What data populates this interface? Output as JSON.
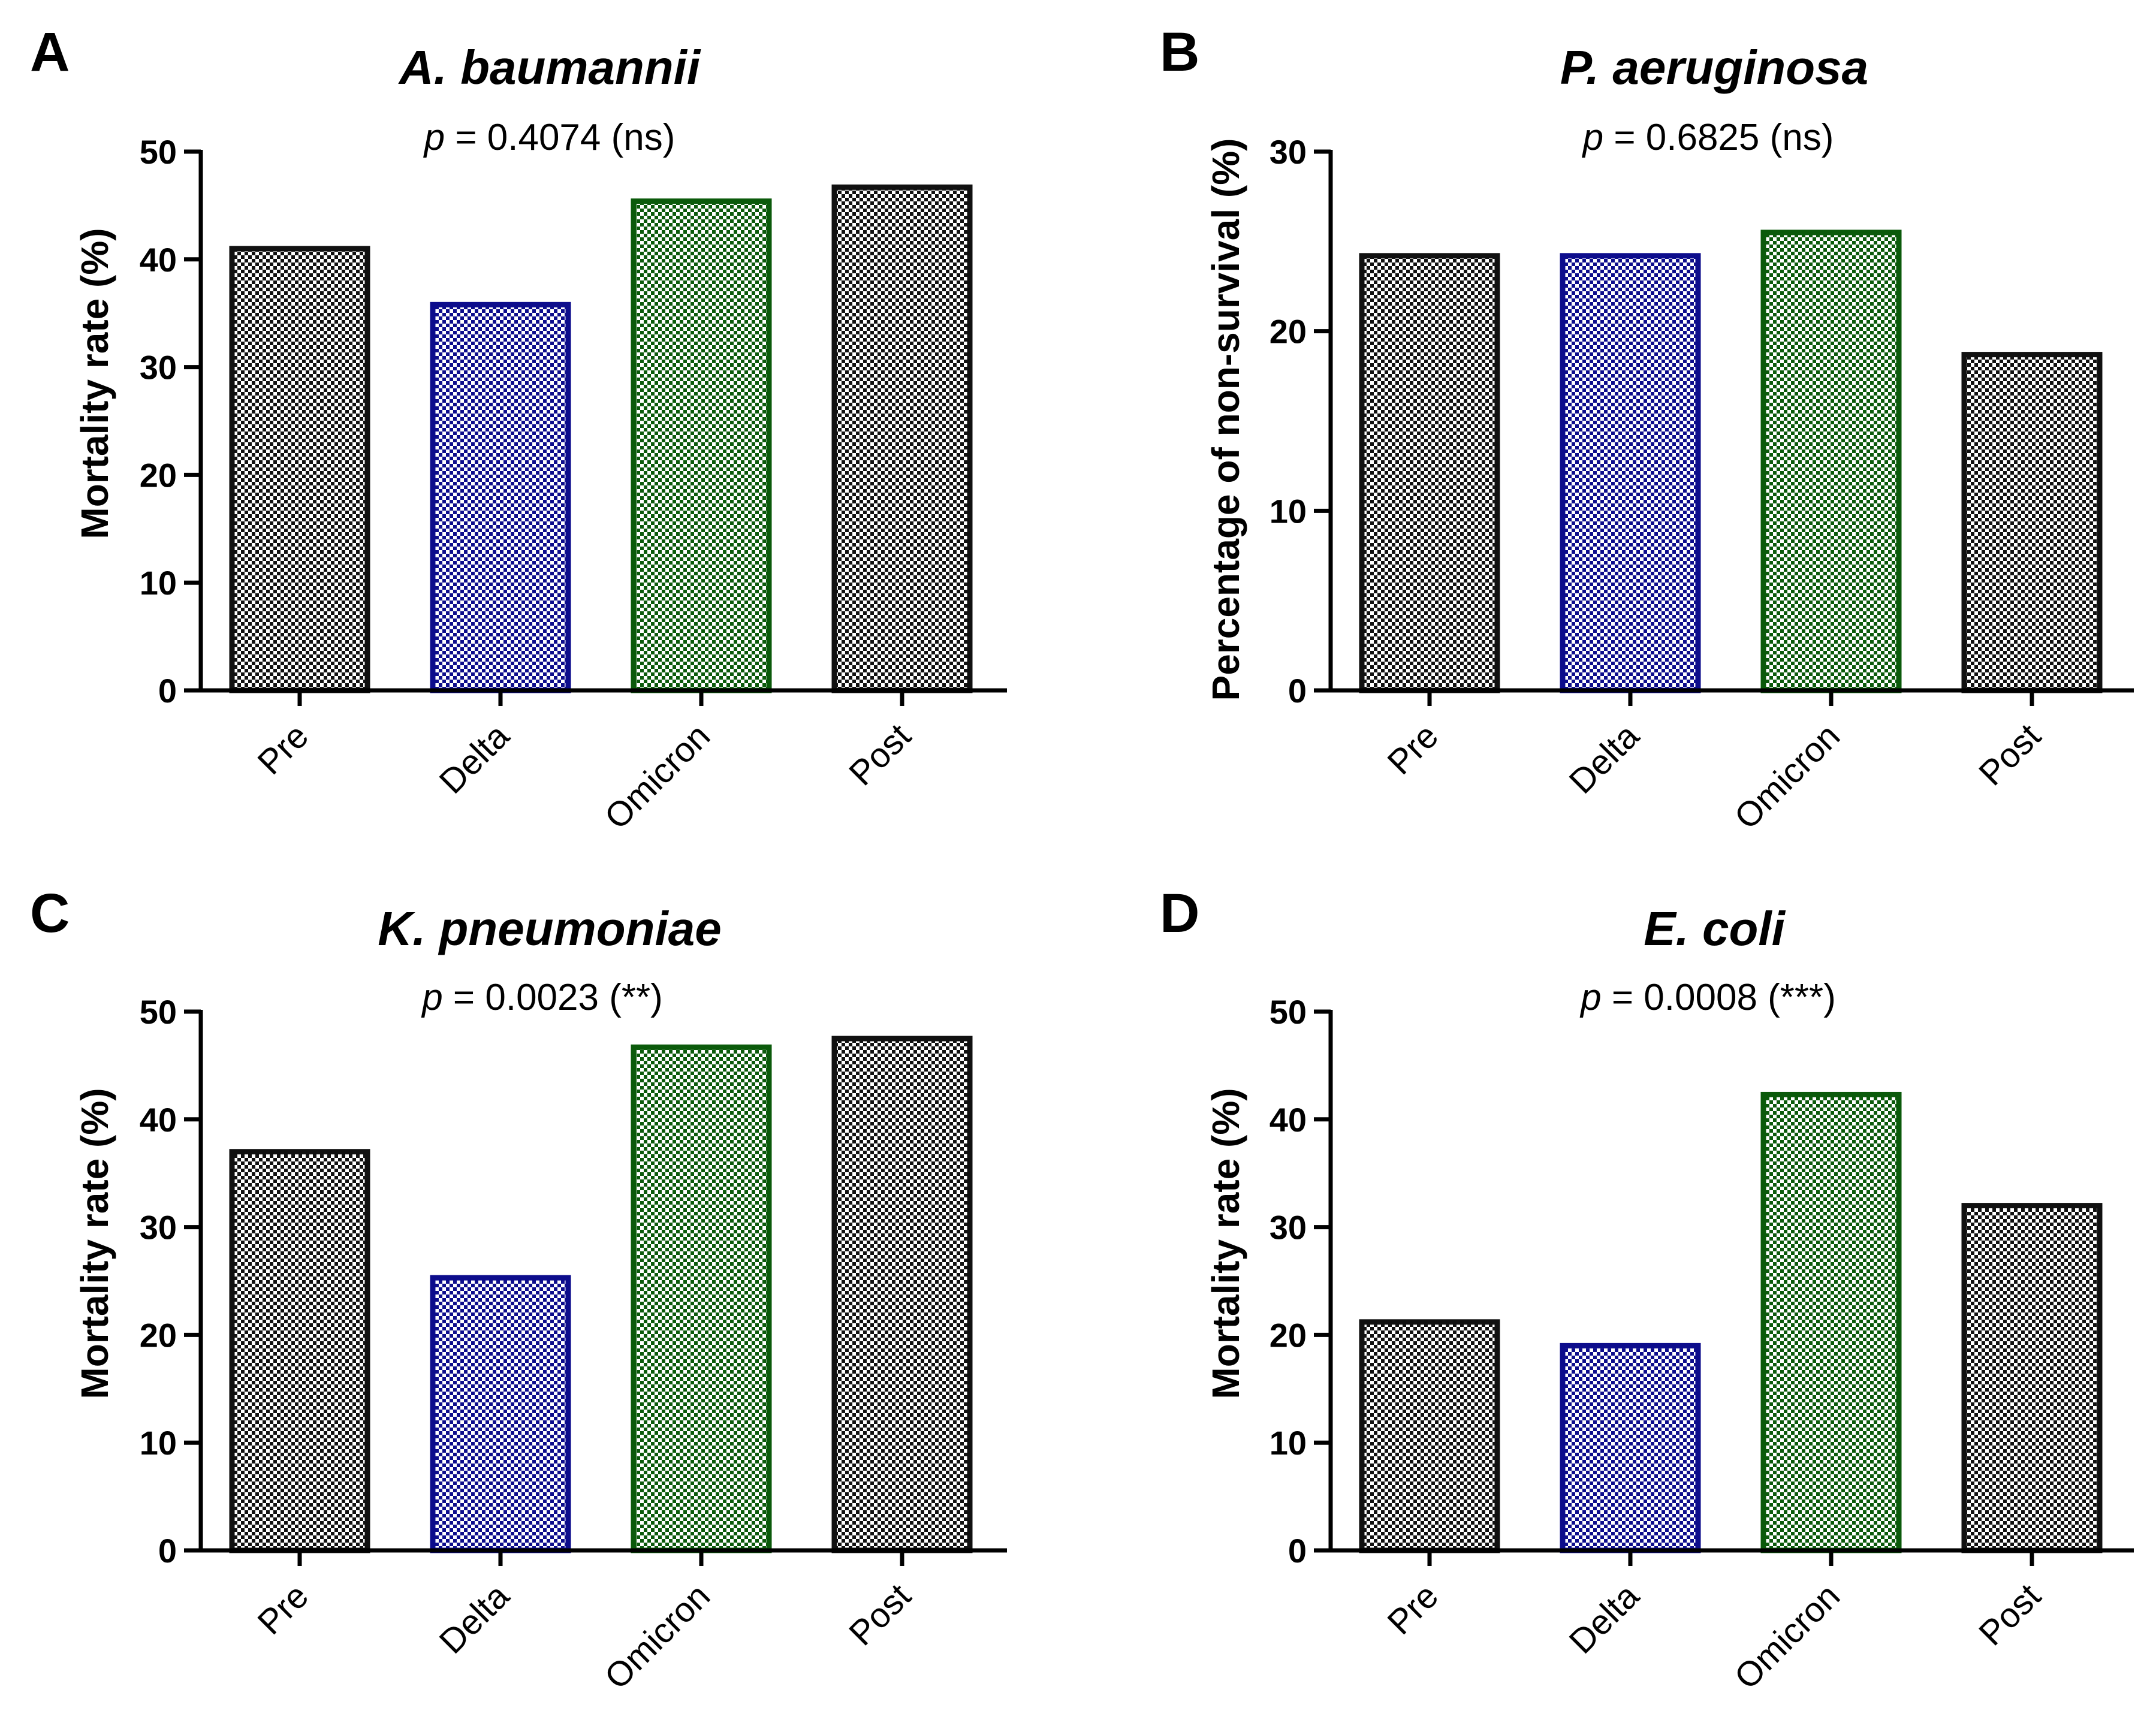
{
  "colors": {
    "black": "#111111",
    "blue": "#0d0d8c",
    "green": "#0b5a0b",
    "background": "#ffffff"
  },
  "chart_data": [
    {
      "panel": "A",
      "type": "bar",
      "title": "A. baumannii",
      "pvalue": {
        "p": "p",
        "rest": " = 0.4074 (ns)"
      },
      "ylabel": "Mortality rate (%)",
      "xlabel": "",
      "categories": [
        "Pre",
        "Delta",
        "Omicron",
        "Post"
      ],
      "values": [
        41,
        35.8,
        45.4,
        46.7
      ],
      "bar_colors": [
        "black",
        "blue",
        "green",
        "black"
      ],
      "ylim": [
        0,
        50
      ],
      "yticks": [
        0,
        10,
        20,
        30,
        40,
        50
      ],
      "grid": false
    },
    {
      "panel": "B",
      "type": "bar",
      "title": "P. aeruginosa",
      "pvalue": {
        "p": "p",
        "rest": " = 0.6825 (ns)"
      },
      "ylabel": "Percentage of non-survival (%)",
      "xlabel": "",
      "categories": [
        "Pre",
        "Delta",
        "Omicron",
        "Post"
      ],
      "values": [
        24.2,
        24.2,
        25.5,
        18.7
      ],
      "bar_colors": [
        "black",
        "blue",
        "green",
        "black"
      ],
      "ylim": [
        0,
        30
      ],
      "yticks": [
        0,
        10,
        20,
        30
      ],
      "grid": false
    },
    {
      "panel": "C",
      "type": "bar",
      "title": "K. pneumoniae",
      "pvalue": {
        "p": "p",
        "rest": " = 0.0023 (**)"
      },
      "ylabel": "Mortality rate (%)",
      "xlabel": "",
      "categories": [
        "Pre",
        "Delta",
        "Omicron",
        "Post"
      ],
      "values": [
        37,
        25.3,
        46.7,
        47.5
      ],
      "bar_colors": [
        "black",
        "blue",
        "green",
        "black"
      ],
      "ylim": [
        0,
        50
      ],
      "yticks": [
        0,
        10,
        20,
        30,
        40,
        50
      ],
      "grid": false
    },
    {
      "panel": "D",
      "type": "bar",
      "title": "E. coli",
      "pvalue": {
        "p": "p",
        "rest": " = 0.0008 (***)"
      },
      "ylabel": "Mortality rate (%)",
      "xlabel": "",
      "categories": [
        "Pre",
        "Delta",
        "Omicron",
        "Post"
      ],
      "values": [
        21.2,
        19,
        42.3,
        32
      ],
      "bar_colors": [
        "black",
        "blue",
        "green",
        "black"
      ],
      "ylim": [
        0,
        50
      ],
      "yticks": [
        0,
        10,
        20,
        30,
        40,
        50
      ],
      "grid": false
    }
  ]
}
